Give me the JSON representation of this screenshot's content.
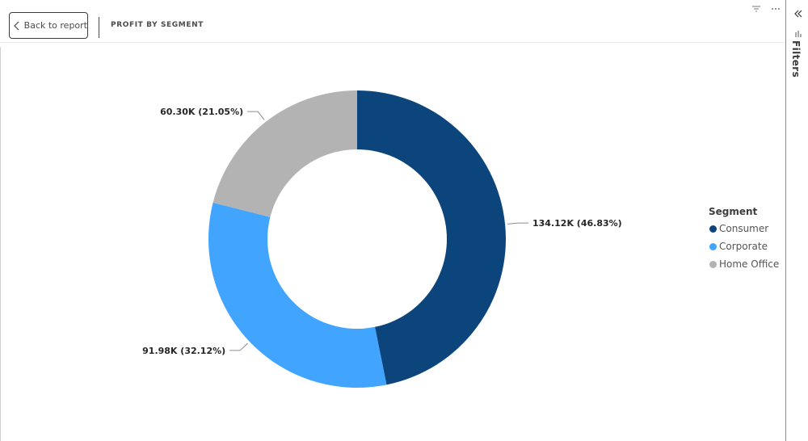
{
  "header": {
    "back_label": "Back to report",
    "title": "PROFIT BY SEGMENT"
  },
  "visual_header": {
    "icons": [
      "filter-icon",
      "more-options-icon"
    ]
  },
  "filters_pane": {
    "label": "Filters",
    "icons": [
      "double-chevron-left-icon",
      "filter-icon"
    ]
  },
  "chart_data": {
    "type": "pie",
    "donut": true,
    "title": "",
    "legend_title": "Segment",
    "legend_position": "right",
    "slices": [
      {
        "name": "Consumer",
        "value": 134.12,
        "unit": "K",
        "percent": 46.83,
        "label": "134.12K (46.83%)",
        "color": "#0b457c"
      },
      {
        "name": "Corporate",
        "value": 91.98,
        "unit": "K",
        "percent": 32.12,
        "label": "91.98K (32.12%)",
        "color": "#41a5ff"
      },
      {
        "name": "Home Office",
        "value": 60.3,
        "unit": "K",
        "percent": 21.05,
        "label": "60.30K (21.05%)",
        "color": "#b3b3b3"
      }
    ]
  }
}
